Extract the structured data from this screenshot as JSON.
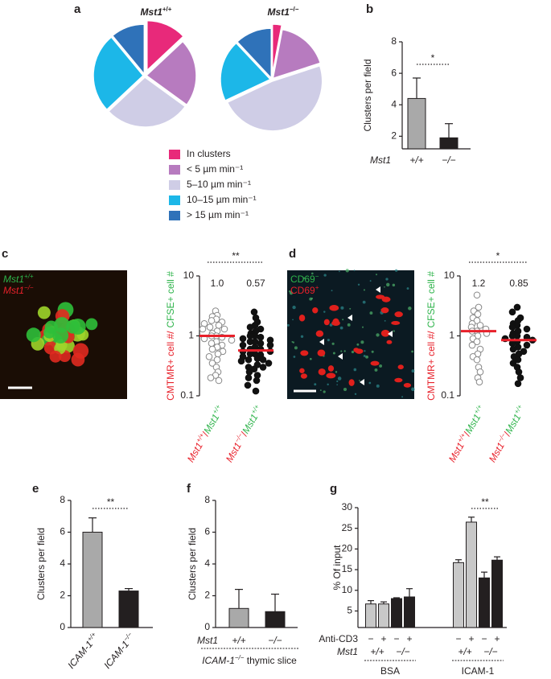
{
  "chart_data": [
    {
      "type": "pie",
      "panel": "a",
      "categories": [
        "In clusters",
        "< 5 µm min⁻¹",
        "5–10 µm min⁻¹",
        "10–15 µm min⁻¹",
        "> 15 µm min⁻¹"
      ],
      "colors": [
        "#e8297a",
        "#b77bbf",
        "#cfcde6",
        "#1cb7e8",
        "#2f72b9"
      ],
      "series": [
        {
          "name": "Mst1",
          "genotype": "+/+",
          "values": [
            13,
            22,
            28,
            26,
            11
          ]
        },
        {
          "name": "Mst1",
          "genotype": "−/−",
          "values": [
            3,
            17,
            48,
            20,
            12
          ]
        }
      ]
    },
    {
      "type": "bar",
      "panel": "b",
      "ylabel": "Clusters per field",
      "row_label": "Mst1",
      "categories": [
        "+/+",
        "−/−"
      ],
      "values": [
        4.4,
        1.9
      ],
      "errors": [
        1.3,
        0.9
      ],
      "colors": [
        "#a9a9a9",
        "#231f20"
      ],
      "ylim": [
        1.2,
        8
      ],
      "yticks": [
        2,
        4,
        6,
        8
      ],
      "significance": "*"
    },
    {
      "type": "scatter",
      "log_y": true,
      "ylabel_parts": [
        "CMTMR+ cell #/",
        "CFSE+ cell #"
      ],
      "ylim": [
        0.1,
        10
      ],
      "yticks": [
        0.1,
        1,
        10
      ],
      "significance": "**",
      "categories": [
        {
          "numerator": "Mst1",
          "numerator_genotype": "+/+",
          "separator": "/",
          "denominator": "Mst1",
          "denominator_genotype": "+/+"
        },
        {
          "numerator": "Mst1",
          "numerator_genotype": "−/−",
          "separator": "/",
          "denominator": "Mst1",
          "denominator_genotype": "+/+"
        }
      ],
      "series": [
        {
          "marker": "open",
          "mean": 1.0,
          "mean_label": "1.0",
          "values": [
            2.6,
            2.2,
            2.1,
            1.9,
            1.8,
            1.7,
            1.6,
            1.5,
            1.4,
            1.3,
            1.3,
            1.2,
            1.1,
            1.0,
            1.0,
            0.95,
            0.9,
            0.85,
            0.8,
            0.75,
            0.7,
            0.65,
            0.6,
            0.55,
            0.5,
            0.45,
            0.4,
            0.35,
            0.3,
            0.25,
            0.22,
            0.2,
            0.18
          ]
        },
        {
          "marker": "filled",
          "mean": 0.57,
          "values": [
            2.5,
            2.0,
            1.7,
            1.5,
            1.4,
            1.3,
            1.2,
            1.1,
            1.0,
            1.0,
            0.95,
            0.9,
            0.85,
            0.8,
            0.8,
            0.75,
            0.7,
            0.7,
            0.65,
            0.6,
            0.6,
            0.55,
            0.55,
            0.5,
            0.5,
            0.48,
            0.45,
            0.42,
            0.4,
            0.4,
            0.38,
            0.35,
            0.33,
            0.3,
            0.3,
            0.28,
            0.25,
            0.22,
            0.2,
            0.18,
            0.15,
            0.12
          ]
        }
      ]
    },
    {
      "type": "scatter",
      "log_y": true,
      "ylabel_parts": [
        "CMTMR+ cell #/",
        "CFSE+ cell #"
      ],
      "ylim": [
        0.1,
        10
      ],
      "yticks": [
        0.1,
        1,
        10
      ],
      "significance": "*",
      "categories": [
        {
          "numerator": "Mst1",
          "numerator_genotype": "+/+",
          "separator": "/",
          "denominator": "Mst1",
          "denominator_genotype": "+/+"
        },
        {
          "numerator": "Mst1",
          "numerator_genotype": "−/−",
          "separator": "/",
          "denominator": "Mst1",
          "denominator_genotype": "+/+"
        }
      ],
      "series": [
        {
          "marker": "open",
          "mean": 1.2,
          "values": [
            4.8,
            3.0,
            2.6,
            2.3,
            2.0,
            1.8,
            1.6,
            1.5,
            1.4,
            1.3,
            1.2,
            1.2,
            1.1,
            1.0,
            0.9,
            0.8,
            0.7,
            0.6,
            0.5,
            0.45,
            0.4,
            0.3,
            0.25,
            0.2,
            0.17
          ]
        },
        {
          "marker": "filled",
          "mean": 0.85,
          "values": [
            3.0,
            2.5,
            2.0,
            1.8,
            1.6,
            1.5,
            1.4,
            1.3,
            1.2,
            1.1,
            1.0,
            1.0,
            0.95,
            0.9,
            0.85,
            0.8,
            0.75,
            0.7,
            0.65,
            0.6,
            0.55,
            0.5,
            0.45,
            0.4,
            0.35,
            0.3,
            0.25,
            0.2,
            0.16
          ]
        }
      ]
    },
    {
      "type": "bar",
      "panel": "e",
      "ylabel": "Clusters per field",
      "categories": [
        {
          "gene": "ICAM-1",
          "genotype": "+/+"
        },
        {
          "gene": "ICAM-1",
          "genotype": "−/−"
        }
      ],
      "values": [
        6.0,
        2.3
      ],
      "errors": [
        0.9,
        0.15
      ],
      "colors": [
        "#a9a9a9",
        "#231f20"
      ],
      "ylim": [
        0,
        8
      ],
      "yticks": [
        0,
        2,
        4,
        6,
        8
      ],
      "significance": "**"
    },
    {
      "type": "bar",
      "panel": "f",
      "ylabel": "Clusters per field",
      "row_label": "Mst1",
      "categories": [
        "+/+",
        "−/−"
      ],
      "values": [
        1.2,
        1.0
      ],
      "errors": [
        1.2,
        1.1
      ],
      "colors": [
        "#a9a9a9",
        "#231f20"
      ],
      "ylim": [
        0,
        8
      ],
      "yticks": [
        0,
        2,
        4,
        6,
        8
      ],
      "footnote": {
        "gene": "ICAM-1",
        "genotype": "−/−",
        "text": " thymic slice"
      }
    },
    {
      "type": "groupedbar",
      "panel": "g",
      "ylabel": "% Of input",
      "categories": [
        "BSA",
        "ICAM-1"
      ],
      "anti_cd3": {
        "label": "Anti-CD3",
        "marks": [
          "−",
          "+",
          "−",
          "+"
        ]
      },
      "mst1": {
        "label": "Mst1",
        "genotypes": [
          "+/+",
          "−/−"
        ]
      },
      "series": [
        {
          "color": "#c8c8c8",
          "values": [
            6.7,
            16.7
          ],
          "errors": [
            0.8,
            0.7
          ]
        },
        {
          "color": "#c8c8c8",
          "values": [
            6.7,
            26.5
          ],
          "errors": [
            0.5,
            1.2
          ]
        },
        {
          "color": "#231f20",
          "values": [
            8.0,
            13.0
          ],
          "errors": [
            0.2,
            1.4
          ]
        },
        {
          "color": "#231f20",
          "values": [
            8.4,
            17.3
          ],
          "errors": [
            2.0,
            0.8
          ]
        }
      ],
      "ylim": [
        1,
        30
      ],
      "yticks": [
        5,
        10,
        15,
        20,
        25,
        30
      ],
      "significance": "**"
    }
  ],
  "images": [
    {
      "panel": "c",
      "labels": [
        {
          "gene": "Mst1",
          "genotype": "+/+"
        },
        {
          "gene": "Mst1",
          "genotype": "−/−"
        }
      ]
    },
    {
      "panel": "d",
      "labels": [
        {
          "gene": "CD69",
          "genotype": "−"
        },
        {
          "gene": "CD69",
          "genotype": "+"
        }
      ]
    }
  ]
}
